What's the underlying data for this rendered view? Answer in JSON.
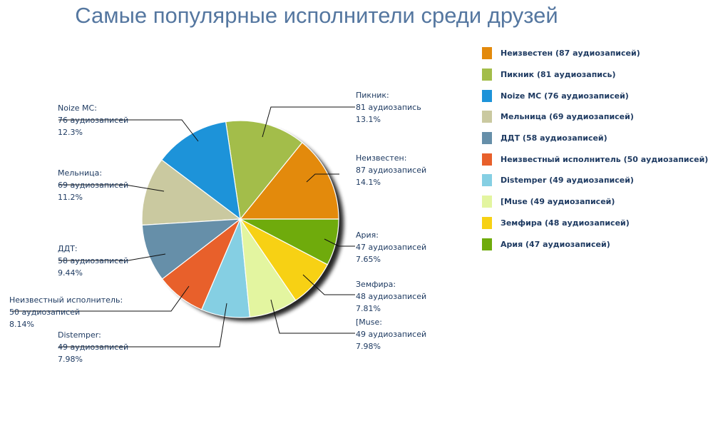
{
  "chart_data": {
    "type": "pie",
    "title": "Самые популярные исполнители среди друзей",
    "slices": [
      {
        "name": "Неизвестен",
        "value": 87,
        "count_text": "87 аудиозаписей",
        "percent_text": "14.1%",
        "legend": "Неизвестен (87 аудиозаписей)",
        "color": "#e38a0c"
      },
      {
        "name": "Пикник",
        "value": 81,
        "count_text": "81 аудиозапись",
        "percent_text": "13.1%",
        "legend": "Пикник (81 аудиозапись)",
        "color": "#a3bd4a"
      },
      {
        "name": "Noize MC",
        "value": 76,
        "count_text": "76 аудиозаписей",
        "percent_text": "12.3%",
        "legend": "Noize MC (76 аудиозаписей)",
        "color": "#1d93d9"
      },
      {
        "name": "Мельница",
        "value": 69,
        "count_text": "69 аудиозаписей",
        "percent_text": "11.2%",
        "legend": "Мельница (69 аудиозаписей)",
        "color": "#cac9a0"
      },
      {
        "name": "ДДТ",
        "value": 58,
        "count_text": "58 аудиозаписей",
        "percent_text": "9.44%",
        "legend": "ДДТ (58 аудиозаписей)",
        "color": "#668fa9"
      },
      {
        "name": "Неизвестный исполнитель",
        "value": 50,
        "count_text": "50 аудиозаписей",
        "percent_text": "8.14%",
        "legend": "Неизвестный исполнитель (50 аудиозаписей)",
        "color": "#e8602b"
      },
      {
        "name": "Distemper",
        "value": 49,
        "count_text": "49 аудиозаписей",
        "percent_text": "7.98%",
        "legend": "Distemper (49 аудиозаписей)",
        "color": "#85cfe3"
      },
      {
        "name": "[Muse",
        "value": 49,
        "count_text": "49 аудиозаписей",
        "percent_text": "7.98%",
        "legend": "[Muse (49 аудиозаписей)",
        "color": "#e3f5a0"
      },
      {
        "name": "Земфира",
        "value": 48,
        "count_text": "48 аудиозаписей",
        "percent_text": "7.81%",
        "legend": "Земфира (48 аудиозаписей)",
        "color": "#f7d114"
      },
      {
        "name": "Ария",
        "value": 47,
        "count_text": "47 аудиозаписей",
        "percent_text": "7.65%",
        "legend": "Ария (47 аудиозаписей)",
        "color": "#6fab0c"
      }
    ],
    "legend_position": "right"
  }
}
